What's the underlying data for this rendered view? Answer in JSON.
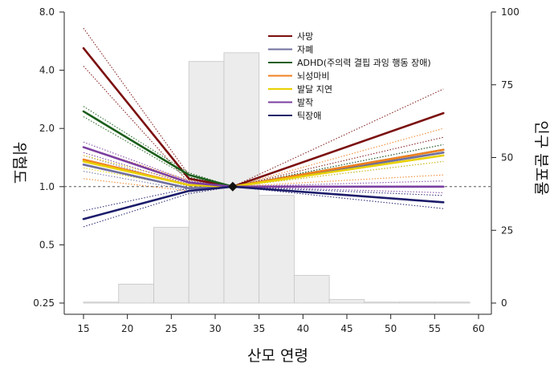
{
  "chart_data": {
    "type": "line",
    "xlabel": "산모 연령",
    "ylabel_left": "위험도",
    "ylabel_right": "인구 분포율",
    "xlim": [
      13,
      61
    ],
    "x_ticks": [
      15,
      20,
      25,
      30,
      35,
      40,
      45,
      50,
      55,
      60
    ],
    "y_left_scale": "log2",
    "y_left_lim": [
      0.25,
      8.0
    ],
    "y_left_ticks": [
      {
        "value": 0.25,
        "label": "0.25"
      },
      {
        "value": 0.5,
        "label": "0.5"
      },
      {
        "value": 1.0,
        "label": "1.0"
      },
      {
        "value": 2.0,
        "label": "2.0"
      },
      {
        "value": 4.0,
        "label": "4.0"
      },
      {
        "value": 8.0,
        "label": "8.0"
      }
    ],
    "y_right_lim": [
      0,
      100
    ],
    "y_right_ticks": [
      0,
      25,
      50,
      75,
      100
    ],
    "reference_line": 1.0,
    "reference_point": {
      "x": 32,
      "y": 1.0
    },
    "histogram": {
      "bins": [
        [
          15,
          19
        ],
        [
          19,
          23
        ],
        [
          23,
          27
        ],
        [
          27,
          31
        ],
        [
          31,
          35
        ],
        [
          35,
          39
        ],
        [
          39,
          43
        ],
        [
          43,
          47
        ],
        [
          47,
          51
        ],
        [
          51,
          55
        ],
        [
          55,
          59
        ]
      ],
      "values": [
        0,
        6.5,
        26,
        83,
        86,
        37,
        9.5,
        1.2,
        0.2,
        0,
        0.2
      ]
    },
    "legend_position": "top-center",
    "series": [
      {
        "name": "사망",
        "color": "#7b0f0f",
        "x": [
          15,
          27,
          32,
          56
        ],
        "y": [
          5.2,
          1.1,
          1.0,
          2.4
        ],
        "ci_low": [
          4.2,
          1.05,
          1.0,
          1.8
        ],
        "ci_high": [
          6.6,
          1.15,
          1.0,
          3.2
        ]
      },
      {
        "name": "자폐",
        "color": "#6f6f9f",
        "x": [
          15,
          27,
          32,
          56
        ],
        "y": [
          1.3,
          0.98,
          1.0,
          1.5
        ],
        "ci_low": [
          1.2,
          0.96,
          1.0,
          1.35
        ],
        "ci_high": [
          1.45,
          1.0,
          1.0,
          1.65
        ]
      },
      {
        "name": "ADHD(주의력 결핍 과잉 행동 장애)",
        "color": "#1a5e1a",
        "x": [
          15,
          27,
          32,
          56
        ],
        "y": [
          2.45,
          1.15,
          1.0,
          1.55
        ],
        "ci_low": [
          2.3,
          1.12,
          1.0,
          1.45
        ],
        "ci_high": [
          2.6,
          1.18,
          1.0,
          1.65
        ]
      },
      {
        "name": "뇌성마비",
        "color": "#f08020",
        "x": [
          15,
          27,
          32,
          56
        ],
        "y": [
          1.38,
          1.02,
          1.0,
          1.55
        ],
        "ci_low": [
          1.1,
          0.95,
          1.0,
          1.15
        ],
        "ci_high": [
          1.6,
          1.08,
          1.0,
          2.0
        ]
      },
      {
        "name": "발달 지연",
        "color": "#e8d000",
        "x": [
          15,
          27,
          32,
          56
        ],
        "y": [
          1.35,
          1.02,
          1.0,
          1.45
        ],
        "ci_low": [
          1.25,
          0.99,
          1.0,
          1.35
        ],
        "ci_high": [
          1.45,
          1.05,
          1.0,
          1.55
        ]
      },
      {
        "name": "발작",
        "color": "#7b3fa0",
        "x": [
          15,
          27,
          32,
          56
        ],
        "y": [
          1.6,
          1.05,
          1.0,
          1.0
        ],
        "ci_low": [
          1.5,
          1.03,
          1.0,
          0.93
        ],
        "ci_high": [
          1.7,
          1.07,
          1.0,
          1.07
        ]
      },
      {
        "name": "틱장애",
        "color": "#1c1c6b",
        "x": [
          15,
          27,
          32,
          56
        ],
        "y": [
          0.68,
          0.95,
          1.0,
          0.83
        ],
        "ci_low": [
          0.62,
          0.92,
          1.0,
          0.77
        ],
        "ci_high": [
          0.75,
          0.98,
          1.0,
          0.9
        ]
      }
    ]
  }
}
